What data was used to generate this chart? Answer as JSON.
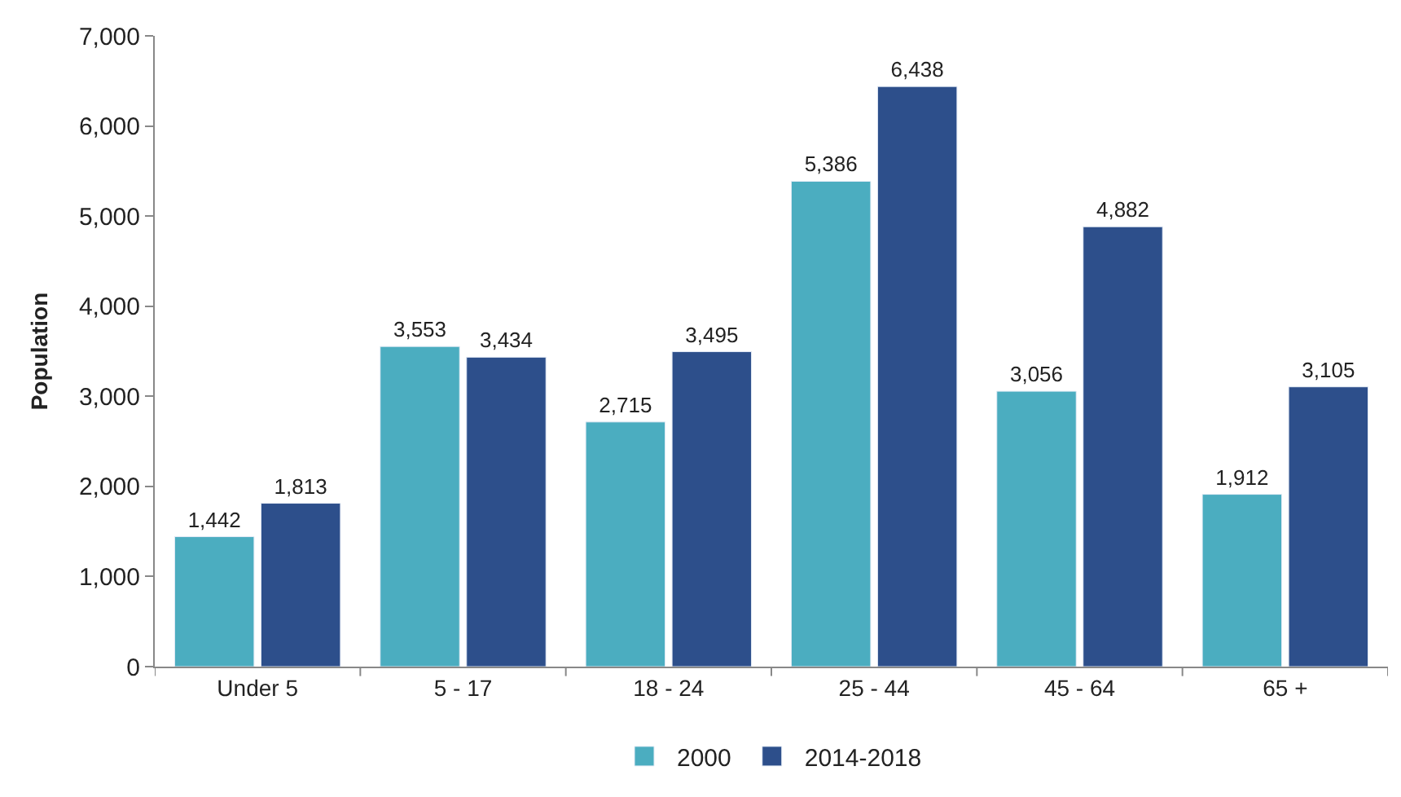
{
  "chart_data": {
    "type": "bar",
    "ylabel": "Population",
    "categories": [
      "Under 5",
      "5 - 17",
      "18 - 24",
      "25 - 44",
      "45 - 64",
      "65 +"
    ],
    "series": [
      {
        "name": "2000",
        "color": "#4badc0",
        "values": [
          1442,
          3553,
          2715,
          5386,
          3056,
          1912
        ],
        "value_labels": [
          "1,442",
          "3,553",
          "2,715",
          "5,386",
          "3,056",
          "1,912"
        ]
      },
      {
        "name": "2014-2018",
        "color": "#2d4f8b",
        "values": [
          1813,
          3434,
          3495,
          6438,
          4882,
          3105
        ],
        "value_labels": [
          "1,813",
          "3,434",
          "3,495",
          "6,438",
          "4,882",
          "3,105"
        ]
      }
    ],
    "ylim": [
      0,
      7000
    ],
    "yticks": [
      {
        "value": 0,
        "label": "0"
      },
      {
        "value": 1000,
        "label": "1,000"
      },
      {
        "value": 2000,
        "label": "2,000"
      },
      {
        "value": 3000,
        "label": "3,000"
      },
      {
        "value": 4000,
        "label": "4,000"
      },
      {
        "value": 5000,
        "label": "5,000"
      },
      {
        "value": 6000,
        "label": "6,000"
      },
      {
        "value": 7000,
        "label": "7,000"
      }
    ],
    "legend": "bottom"
  }
}
